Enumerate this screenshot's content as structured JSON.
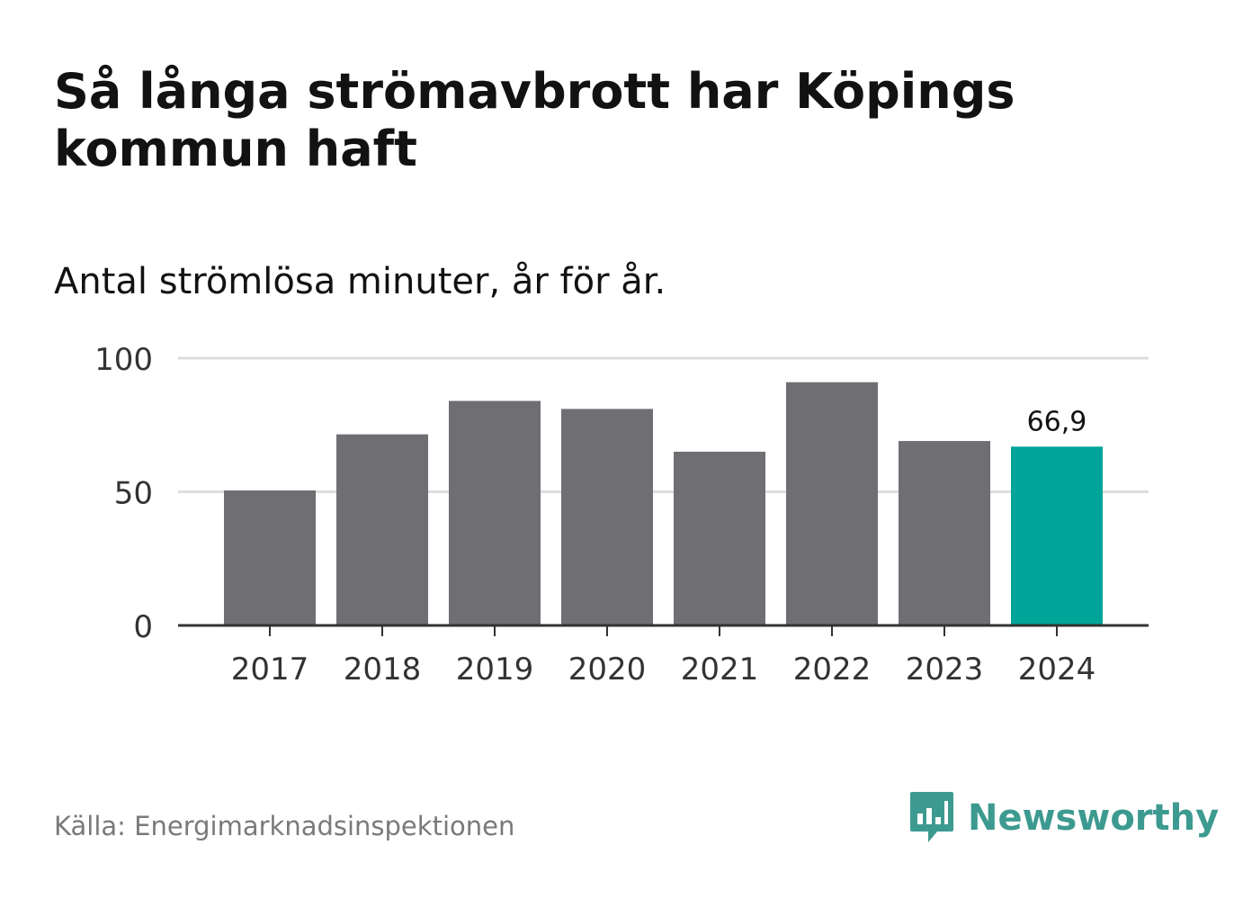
{
  "title": "Så långa strömavbrott har Köpings kommun haft",
  "subtitle": "Antal strömlösa minuter, år för år.",
  "source": "Källa: Energimarknadsinspektionen",
  "brand": {
    "name": "Newsworthy",
    "color": "#3d9a90",
    "icon": "bar-chart-speech-bubble-icon"
  },
  "colors": {
    "bar": "#6f6e73",
    "highlight": "#00a59a",
    "grid": "#dddddd",
    "axis": "#333333",
    "text": "#121212"
  },
  "chart_data": {
    "type": "bar",
    "title": "Så långa strömavbrott har Köpings kommun haft",
    "subtitle": "Antal strömlösa minuter, år för år.",
    "xlabel": "",
    "ylabel": "",
    "categories": [
      "2017",
      "2018",
      "2019",
      "2020",
      "2021",
      "2022",
      "2023",
      "2024"
    ],
    "values": [
      50.5,
      71.5,
      84,
      81,
      65,
      91,
      69,
      66.9
    ],
    "ylim": [
      0,
      100
    ],
    "yticks": [
      0,
      50,
      100
    ],
    "ytick_labels": [
      "0",
      "50",
      "100"
    ],
    "highlight_index": 7,
    "data_labels": [
      {
        "index": 7,
        "text": "66,9"
      }
    ],
    "grid": true,
    "legend": "none"
  }
}
